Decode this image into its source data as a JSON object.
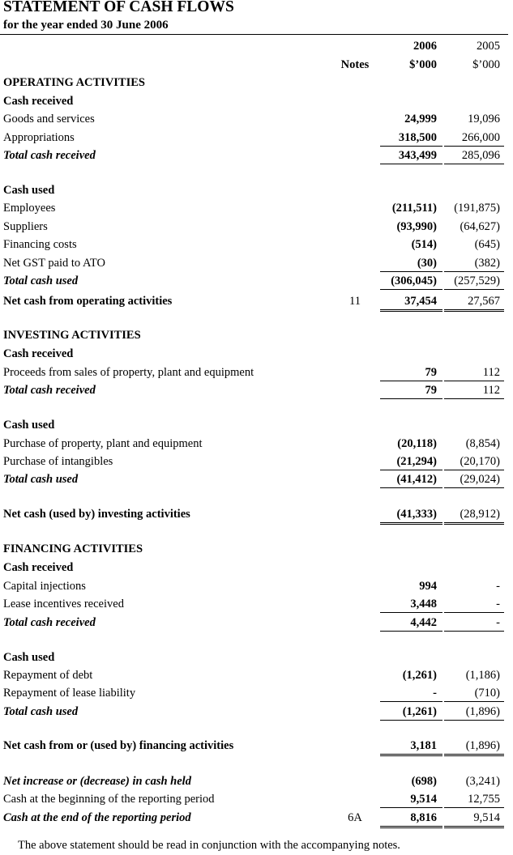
{
  "header": {
    "title": "STATEMENT OF CASH FLOWS",
    "subtitle": "for the year ended 30 June 2006",
    "notes_label": "Notes",
    "year_current": "2006",
    "year_prior": "2005",
    "unit_current": "$’000",
    "unit_prior": "$’000"
  },
  "rows": [
    {
      "type": "section",
      "label": "OPERATING ACTIVITIES"
    },
    {
      "type": "sub",
      "label": "Cash received"
    },
    {
      "type": "item",
      "label": "Goods and services",
      "y2006": "24,999",
      "y2005": "19,096"
    },
    {
      "type": "item",
      "label": "Appropriations",
      "y2006": "318,500",
      "y2005": "266,000",
      "rule": "single"
    },
    {
      "type": "total",
      "label": "Total cash received",
      "y2006": "343,499",
      "y2005": "285,096",
      "rule": "single"
    },
    {
      "type": "sub",
      "label": "Cash used"
    },
    {
      "type": "item",
      "label": "Employees",
      "y2006": "(211,511)",
      "y2005": "(191,875)"
    },
    {
      "type": "item",
      "label": "Suppliers",
      "y2006": "(93,990)",
      "y2005": "(64,627)"
    },
    {
      "type": "item",
      "label": "Financing costs",
      "y2006": "(514)",
      "y2005": "(645)"
    },
    {
      "type": "item",
      "label": "Net GST paid to ATO",
      "y2006": "(30)",
      "y2005": "(382)",
      "rule": "single"
    },
    {
      "type": "total",
      "label": "Total cash used",
      "y2006": "(306,045)",
      "y2005": "(257,529)",
      "rule": "single"
    },
    {
      "type": "net",
      "label": "Net cash from operating activities",
      "note": "11",
      "y2006": "37,454",
      "y2005": "27,567",
      "rule": "double"
    },
    {
      "type": "section",
      "label": "INVESTING ACTIVITIES"
    },
    {
      "type": "sub",
      "label": "Cash received"
    },
    {
      "type": "item",
      "label": "Proceeds from sales of property, plant and equipment",
      "y2006": "79",
      "y2005": "112",
      "rule": "single"
    },
    {
      "type": "total",
      "label": "Total cash received",
      "y2006": "79",
      "y2005": "112",
      "rule": "single"
    },
    {
      "type": "sub",
      "label": "Cash used"
    },
    {
      "type": "item",
      "label": "Purchase of property, plant and equipment",
      "y2006": "(20,118)",
      "y2005": "(8,854)"
    },
    {
      "type": "item",
      "label": "Purchase of intangibles",
      "y2006": "(21,294)",
      "y2005": "(20,170)",
      "rule": "single"
    },
    {
      "type": "total",
      "label": "Total cash used",
      "y2006": "(41,412)",
      "y2005": "(29,024)",
      "rule": "single"
    },
    {
      "type": "net",
      "label": "Net cash (used by) investing activities",
      "y2006": "(41,333)",
      "y2005": "(28,912)",
      "rule": "double"
    },
    {
      "type": "section",
      "label": "FINANCING ACTIVITIES"
    },
    {
      "type": "sub",
      "label": "Cash received"
    },
    {
      "type": "item",
      "label": "Capital injections",
      "y2006": "994",
      "y2005": "-"
    },
    {
      "type": "item",
      "label": "Lease incentives received",
      "y2006": "3,448",
      "y2005": "-",
      "rule": "single"
    },
    {
      "type": "total",
      "label": "Total cash received",
      "y2006": "4,442",
      "y2005": "-",
      "rule": "single"
    },
    {
      "type": "sub",
      "label": "Cash used"
    },
    {
      "type": "item",
      "label": "Repayment of debt",
      "y2006": "(1,261)",
      "y2005": "(1,186)"
    },
    {
      "type": "item",
      "label": "Repayment of lease liability",
      "y2006": "-",
      "y2005": "(710)",
      "rule": "single"
    },
    {
      "type": "total",
      "label": "Total cash used",
      "y2006": "(1,261)",
      "y2005": "(1,896)",
      "rule": "single"
    },
    {
      "type": "net",
      "label": "Net cash from or (used by) financing activities",
      "y2006": "3,181",
      "y2005": "(1,896)",
      "rule": "double"
    },
    {
      "type": "netit",
      "label": "Net increase or (decrease) in cash held",
      "y2006": "(698)",
      "y2005": "(3,241)"
    },
    {
      "type": "item",
      "label": "Cash at the beginning of the reporting period",
      "y2006": "9,514",
      "y2005": "12,755",
      "rule": "single"
    },
    {
      "type": "netit",
      "label": "Cash at the end of the reporting period",
      "note": "6A",
      "y2006": "8,816",
      "y2005": "9,514",
      "rule": "double"
    }
  ],
  "footer": "The above statement should be read in conjunction with the accompanying notes."
}
